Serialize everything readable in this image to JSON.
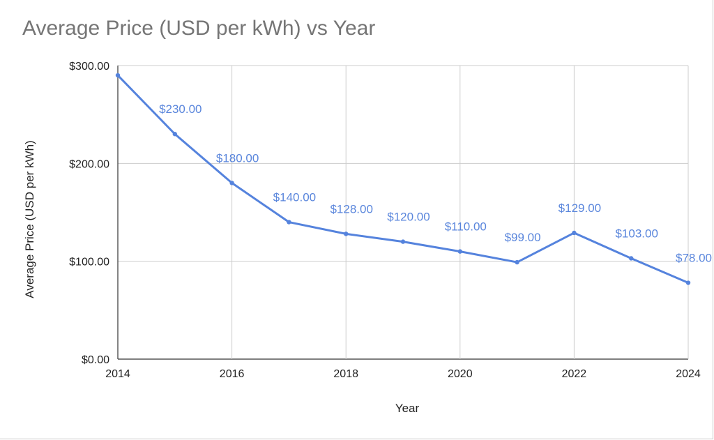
{
  "chart_data": {
    "type": "line",
    "title": "Average Price (USD per kWh) vs Year",
    "xlabel": "Year",
    "ylabel": "Average Price (USD per kWh)",
    "x": [
      2014,
      2015,
      2016,
      2017,
      2018,
      2019,
      2020,
      2021,
      2022,
      2023,
      2024
    ],
    "series": [
      {
        "values": [
          290,
          230,
          180,
          140,
          128,
          120,
          110,
          99,
          129,
          103,
          78
        ],
        "data_labels": [
          "",
          "$230.00",
          "$180.00",
          "$140.00",
          "$128.00",
          "$120.00",
          "$110.00",
          "$99.00",
          "$129.00",
          "$103.00",
          "$78.00"
        ],
        "color": "#5583dd"
      }
    ],
    "xlim": [
      2014,
      2024
    ],
    "ylim": [
      0,
      300
    ],
    "x_ticks": [
      2014,
      2016,
      2018,
      2020,
      2022,
      2024
    ],
    "x_tick_labels": [
      "2014",
      "2016",
      "2018",
      "2020",
      "2022",
      "2024"
    ],
    "y_ticks": [
      0,
      100,
      200,
      300
    ],
    "y_tick_labels": [
      "$0.00",
      "$100.00",
      "$200.00",
      "$300.00"
    ],
    "grid": true,
    "grid_color": "#cccccc",
    "data_label_color": "#5a86dc",
    "title_color": "#757575"
  }
}
